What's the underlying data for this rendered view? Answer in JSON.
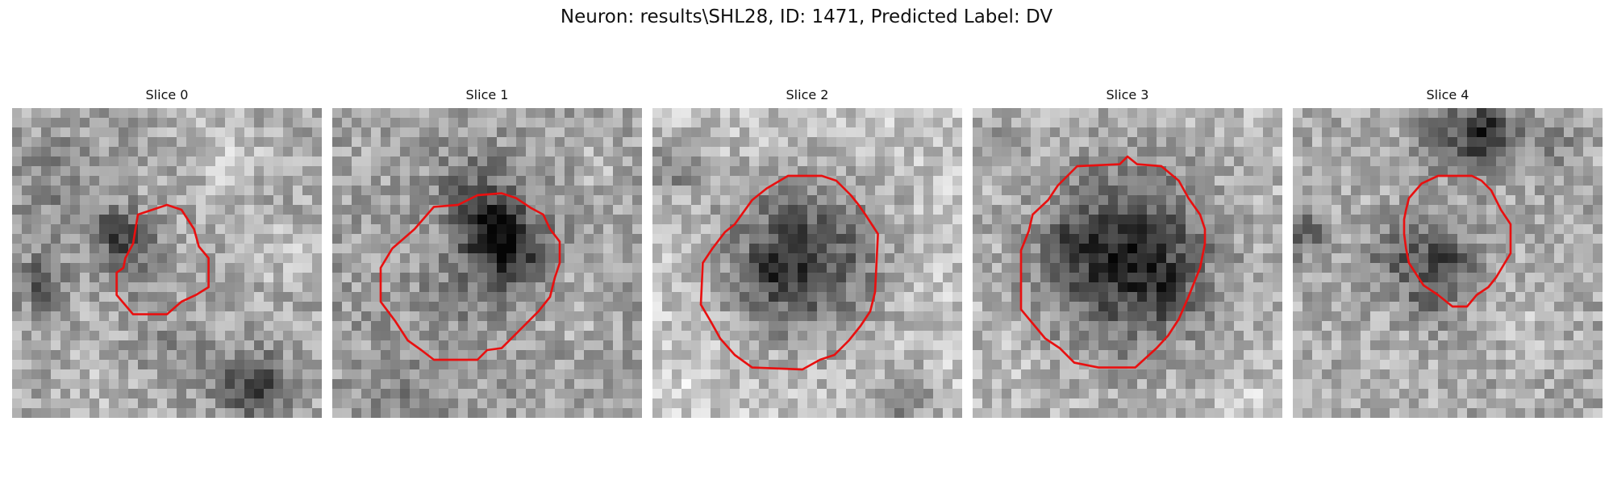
{
  "figure": {
    "title": "Neuron: results\\SHL28, ID: 1471, Predicted Label: DV"
  },
  "panels": [
    {
      "title": "Slice 0",
      "contour_color": "#e81010"
    },
    {
      "title": "Slice 1",
      "contour_color": "#e81010"
    },
    {
      "title": "Slice 2",
      "contour_color": "#e81010"
    },
    {
      "title": "Slice 3",
      "contour_color": "#e81010"
    },
    {
      "title": "Slice 4",
      "contour_color": "#e81010"
    }
  ]
}
